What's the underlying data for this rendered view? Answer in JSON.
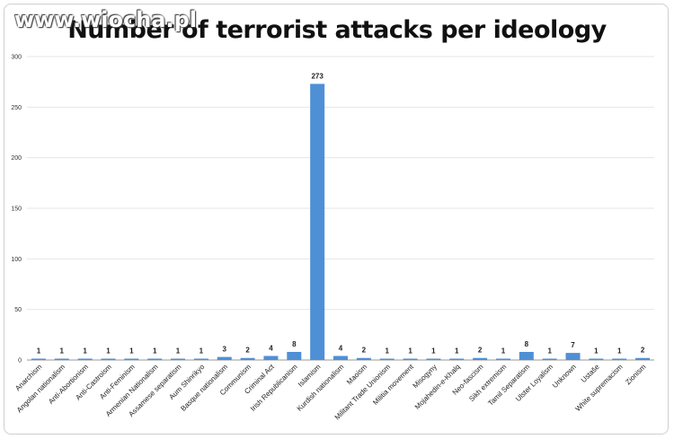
{
  "watermark": "www.wiocha.pl",
  "chart_data": {
    "type": "bar",
    "title": "Number of terrorist attacks per ideology",
    "xlabel": "",
    "ylabel": "",
    "ylim": [
      0,
      300
    ],
    "yticks": [
      0,
      50,
      100,
      150,
      200,
      250,
      300
    ],
    "grid": true,
    "legend": "none",
    "bar_color": "#4f8fd6",
    "categories": [
      "Anarchism",
      "Angolan nationalism",
      "Anti-Abortionism",
      "Anti-Castroism",
      "Anti-Feminism",
      "Armenian Nationalism",
      "Assamese separatism",
      "Aum Shinrikyo",
      "Basque nationalism",
      "Communism",
      "Criminal Act",
      "Irish Republicanism",
      "Islamism",
      "Kurdish nationalism",
      "Maoism",
      "Militant Trade Unionism",
      "Militia movement",
      "Misogyny",
      "Mojahedin-e-Khalq",
      "Neo-fascism",
      "Sikh extremism",
      "Tamil Separatism",
      "Ulster Loyalism",
      "Unknown",
      "Ustaše",
      "White supremacism",
      "Zionism"
    ],
    "values": [
      1,
      1,
      1,
      1,
      1,
      1,
      1,
      1,
      3,
      2,
      4,
      8,
      273,
      4,
      2,
      1,
      1,
      1,
      1,
      2,
      1,
      8,
      1,
      7,
      1,
      1,
      2
    ]
  }
}
